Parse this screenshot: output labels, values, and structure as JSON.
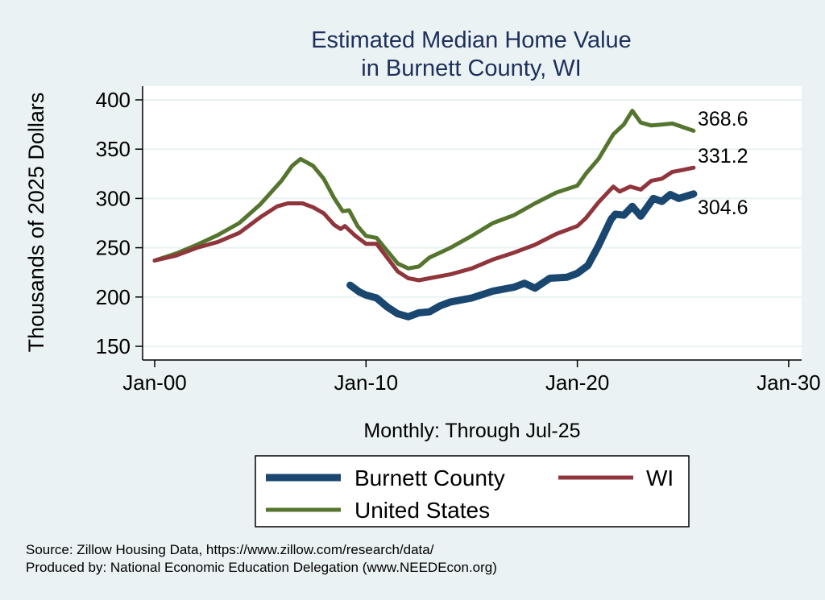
{
  "chart_data": {
    "type": "line",
    "title": [
      "Estimated Median Home Value",
      "in Burnett County, WI"
    ],
    "xlabel": "Monthly: Through Jul-25",
    "ylabel": "Thousands of 2025 Dollars",
    "xlim": [
      2000,
      2030
    ],
    "ylim": [
      150,
      400
    ],
    "yticks": [
      150,
      200,
      250,
      300,
      350,
      400
    ],
    "xticks": [
      {
        "v": 2000,
        "label": "Jan-00"
      },
      {
        "v": 2010,
        "label": "Jan-10"
      },
      {
        "v": 2020,
        "label": "Jan-20"
      },
      {
        "v": 2030,
        "label": "Jan-30"
      }
    ],
    "grid": true,
    "legend_position": "bottom",
    "series": [
      {
        "name": "Burnett County",
        "color": "#1a476f",
        "end_label": "304.6",
        "points": [
          [
            2009.25,
            212
          ],
          [
            2009.7,
            205
          ],
          [
            2010,
            202
          ],
          [
            2010.5,
            199
          ],
          [
            2011,
            190
          ],
          [
            2011.5,
            183
          ],
          [
            2012,
            180
          ],
          [
            2012.5,
            184
          ],
          [
            2013,
            185
          ],
          [
            2013.5,
            191
          ],
          [
            2014,
            195
          ],
          [
            2015,
            199
          ],
          [
            2016,
            206
          ],
          [
            2017,
            210
          ],
          [
            2017.5,
            214
          ],
          [
            2018,
            209
          ],
          [
            2018.7,
            219
          ],
          [
            2019.5,
            220
          ],
          [
            2020,
            224
          ],
          [
            2020.5,
            232
          ],
          [
            2021,
            252
          ],
          [
            2021.6,
            279
          ],
          [
            2021.8,
            284
          ],
          [
            2022.2,
            283
          ],
          [
            2022.6,
            292
          ],
          [
            2023,
            282
          ],
          [
            2023.6,
            300
          ],
          [
            2024,
            297
          ],
          [
            2024.4,
            304
          ],
          [
            2024.8,
            300
          ],
          [
            2025.5,
            304.6
          ]
        ]
      },
      {
        "name": "WI",
        "color": "#90353b",
        "end_label": "331.2",
        "points": [
          [
            2000,
            237
          ],
          [
            2001,
            242
          ],
          [
            2002,
            250
          ],
          [
            2003,
            256
          ],
          [
            2004,
            265
          ],
          [
            2005,
            281
          ],
          [
            2005.8,
            292
          ],
          [
            2006.3,
            295
          ],
          [
            2007,
            295
          ],
          [
            2007.5,
            291
          ],
          [
            2008,
            285
          ],
          [
            2008.5,
            273
          ],
          [
            2008.8,
            269
          ],
          [
            2009,
            272
          ],
          [
            2009.5,
            262
          ],
          [
            2010,
            254
          ],
          [
            2010.5,
            254
          ],
          [
            2011,
            240
          ],
          [
            2011.5,
            226
          ],
          [
            2012,
            219
          ],
          [
            2012.5,
            217
          ],
          [
            2013,
            219
          ],
          [
            2014,
            223
          ],
          [
            2015,
            229
          ],
          [
            2016,
            238
          ],
          [
            2017,
            245
          ],
          [
            2018,
            253
          ],
          [
            2019,
            264
          ],
          [
            2020,
            272
          ],
          [
            2020.4,
            280
          ],
          [
            2021,
            296
          ],
          [
            2021.7,
            312
          ],
          [
            2022,
            307
          ],
          [
            2022.5,
            312
          ],
          [
            2023,
            309
          ],
          [
            2023.5,
            318
          ],
          [
            2024,
            320
          ],
          [
            2024.5,
            327
          ],
          [
            2025,
            329
          ],
          [
            2025.5,
            331.2
          ]
        ]
      },
      {
        "name": "United States",
        "color": "#55752f",
        "end_label": "368.6",
        "points": [
          [
            2000,
            237
          ],
          [
            2001,
            244
          ],
          [
            2002,
            253
          ],
          [
            2003,
            263
          ],
          [
            2004,
            275
          ],
          [
            2005,
            294
          ],
          [
            2006,
            318
          ],
          [
            2006.5,
            333
          ],
          [
            2006.9,
            340
          ],
          [
            2007.5,
            333
          ],
          [
            2008,
            320
          ],
          [
            2008.5,
            300
          ],
          [
            2008.9,
            287
          ],
          [
            2009.2,
            288
          ],
          [
            2009.6,
            272
          ],
          [
            2010,
            262
          ],
          [
            2010.5,
            260
          ],
          [
            2011,
            247
          ],
          [
            2011.5,
            234
          ],
          [
            2012,
            229
          ],
          [
            2012.5,
            231
          ],
          [
            2013,
            240
          ],
          [
            2014,
            250
          ],
          [
            2015,
            262
          ],
          [
            2016,
            275
          ],
          [
            2017,
            283
          ],
          [
            2018,
            295
          ],
          [
            2019,
            306
          ],
          [
            2020,
            313
          ],
          [
            2020.4,
            325
          ],
          [
            2021,
            340
          ],
          [
            2021.7,
            365
          ],
          [
            2022.2,
            375
          ],
          [
            2022.6,
            389
          ],
          [
            2023,
            377
          ],
          [
            2023.5,
            374
          ],
          [
            2024,
            375
          ],
          [
            2024.5,
            376
          ],
          [
            2025.5,
            368.6
          ]
        ]
      }
    ],
    "notes": [
      "Source: Zillow Housing Data, https://www.zillow.com/research/data/",
      "Produced by: National Economic Education Delegation (www.NEEDEcon.org)"
    ]
  }
}
